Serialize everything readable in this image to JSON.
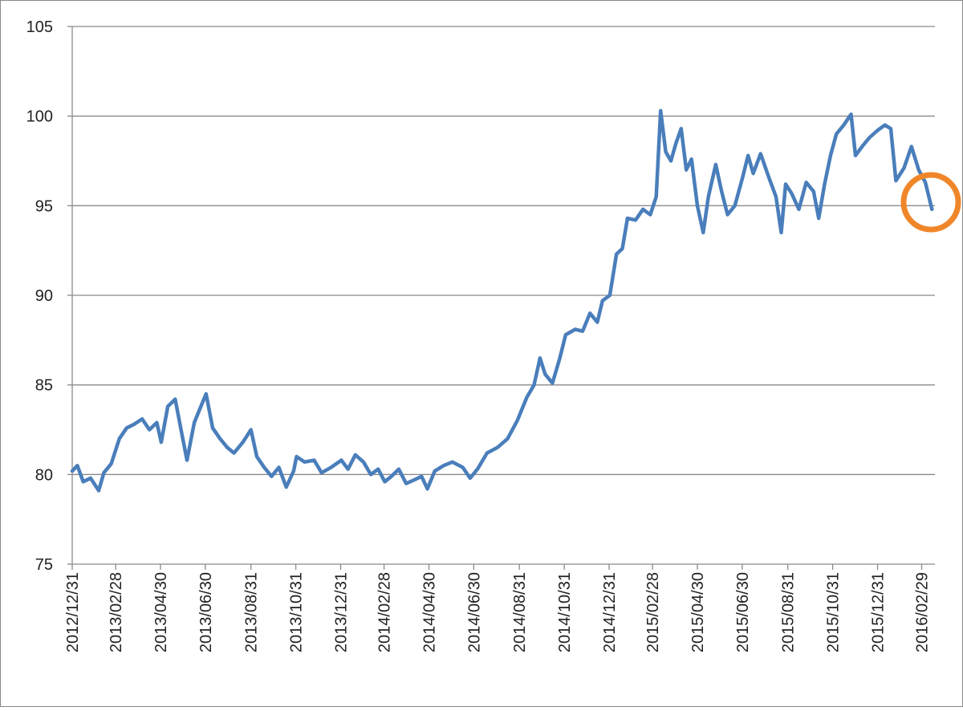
{
  "chart_data": {
    "type": "line",
    "color": "#4a7ebb",
    "grid": true,
    "ylim": [
      75,
      105
    ],
    "yticks": [
      75,
      80,
      85,
      90,
      95,
      100,
      105
    ],
    "xlim": [
      "2012/12/31",
      "2016/03/18"
    ],
    "xticks": [
      "2012/12/31",
      "2013/02/28",
      "2013/04/30",
      "2013/06/30",
      "2013/08/31",
      "2013/10/31",
      "2013/12/31",
      "2014/02/28",
      "2014/04/30",
      "2014/06/30",
      "2014/08/31",
      "2014/10/31",
      "2014/12/31",
      "2015/02/28",
      "2015/04/30",
      "2015/06/30",
      "2015/08/31",
      "2015/10/31",
      "2015/12/31",
      "2016/02/29"
    ],
    "x": [
      "2012/12/31",
      "2013/01/07",
      "2013/01/15",
      "2013/01/25",
      "2013/02/05",
      "2013/02/12",
      "2013/02/22",
      "2013/03/05",
      "2013/03/15",
      "2013/03/25",
      "2013/04/05",
      "2013/04/15",
      "2013/04/25",
      "2013/05/01",
      "2013/05/10",
      "2013/05/20",
      "2013/05/28",
      "2013/06/05",
      "2013/06/15",
      "2013/06/22",
      "2013/07/01",
      "2013/07/10",
      "2013/07/20",
      "2013/07/30",
      "2013/08/08",
      "2013/08/20",
      "2013/08/31",
      "2013/09/08",
      "2013/09/18",
      "2013/09/28",
      "2013/10/08",
      "2013/10/18",
      "2013/10/28",
      "2013/11/01",
      "2013/11/12",
      "2013/11/25",
      "2013/12/05",
      "2013/12/18",
      "2014/01/01",
      "2014/01/10",
      "2014/01/20",
      "2014/01/31",
      "2014/02/10",
      "2014/02/20",
      "2014/03/01",
      "2014/03/10",
      "2014/03/20",
      "2014/03/30",
      "2014/04/10",
      "2014/04/20",
      "2014/04/28",
      "2014/05/08",
      "2014/05/20",
      "2014/06/01",
      "2014/06/15",
      "2014/06/25",
      "2014/07/05",
      "2014/07/18",
      "2014/08/01",
      "2014/08/15",
      "2014/08/28",
      "2014/09/10",
      "2014/09/20",
      "2014/09/28",
      "2014/10/05",
      "2014/10/15",
      "2014/10/25",
      "2014/11/02",
      "2014/11/15",
      "2014/11/25",
      "2014/12/05",
      "2014/12/15",
      "2014/12/22",
      "2015/01/01",
      "2015/01/10",
      "2015/01/18",
      "2015/01/25",
      "2015/02/05",
      "2015/02/15",
      "2015/02/25",
      "2015/03/05",
      "2015/03/11",
      "2015/03/18",
      "2015/03/25",
      "2015/04/01",
      "2015/04/08",
      "2015/04/15",
      "2015/04/22",
      "2015/04/30",
      "2015/05/08",
      "2015/05/15",
      "2015/05/25",
      "2015/06/02",
      "2015/06/10",
      "2015/06/20",
      "2015/06/30",
      "2015/07/08",
      "2015/07/15",
      "2015/07/25",
      "2015/08/05",
      "2015/08/15",
      "2015/08/22",
      "2015/08/28",
      "2015/09/05",
      "2015/09/15",
      "2015/09/25",
      "2015/10/05",
      "2015/10/12",
      "2015/10/20",
      "2015/10/28",
      "2015/11/05",
      "2015/11/15",
      "2015/11/25",
      "2015/12/01",
      "2015/12/10",
      "2015/12/20",
      "2015/12/31",
      "2016/01/10",
      "2016/01/18",
      "2016/01/25",
      "2016/02/05",
      "2016/02/15",
      "2016/02/25",
      "2016/03/05",
      "2016/03/14"
    ],
    "values": [
      80.2,
      80.5,
      79.6,
      79.8,
      79.1,
      80.1,
      80.6,
      82.0,
      82.6,
      82.8,
      83.1,
      82.5,
      82.9,
      81.8,
      83.8,
      84.2,
      82.5,
      80.8,
      82.9,
      83.6,
      84.5,
      82.6,
      82.0,
      81.5,
      81.2,
      81.8,
      82.5,
      81.0,
      80.4,
      79.9,
      80.4,
      79.3,
      80.2,
      81.0,
      80.7,
      80.8,
      80.1,
      80.4,
      80.8,
      80.3,
      81.1,
      80.7,
      80.0,
      80.3,
      79.6,
      79.9,
      80.3,
      79.5,
      79.7,
      79.9,
      79.2,
      80.2,
      80.5,
      80.7,
      80.4,
      79.8,
      80.3,
      81.2,
      81.5,
      82.0,
      83.0,
      84.3,
      85.0,
      86.5,
      85.6,
      85.1,
      86.5,
      87.8,
      88.1,
      88.0,
      89.0,
      88.5,
      89.7,
      90.0,
      92.3,
      92.6,
      94.3,
      94.2,
      94.8,
      94.5,
      95.5,
      100.3,
      98.0,
      97.5,
      98.5,
      99.3,
      97.0,
      97.6,
      95.0,
      93.5,
      95.5,
      97.3,
      95.8,
      94.5,
      95.0,
      96.5,
      97.8,
      96.8,
      97.9,
      96.6,
      95.5,
      93.5,
      96.2,
      95.7,
      94.8,
      96.3,
      95.8,
      94.3,
      96.2,
      97.8,
      99.0,
      99.5,
      100.1,
      97.8,
      98.3,
      98.8,
      99.2,
      99.5,
      99.3,
      96.4,
      97.1,
      98.3,
      97.0,
      96.3,
      94.8
    ]
  }
}
